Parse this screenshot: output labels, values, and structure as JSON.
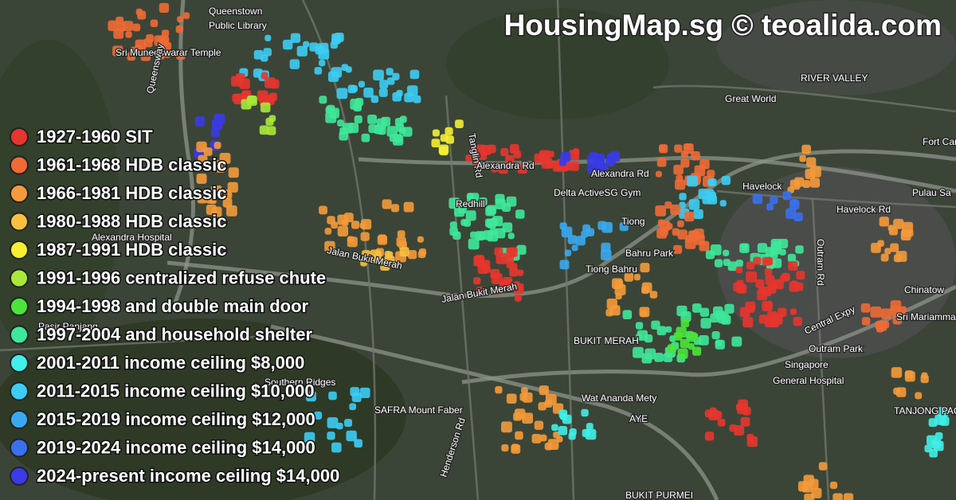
{
  "title": "HousingMap.sg © teoalida.com",
  "legend": [
    {
      "label": "1927-1960 SIT",
      "color": "#e8352e"
    },
    {
      "label": "1961-1968 HDB classic",
      "color": "#f06a35"
    },
    {
      "label": "1966-1981 HDB classic",
      "color": "#f59a3a"
    },
    {
      "label": "1980-1988 HDB classic",
      "color": "#f8c040"
    },
    {
      "label": "1987-1991 HDB classic",
      "color": "#f5f030"
    },
    {
      "label": "1991-1996 centralized refuse chute",
      "color": "#a8e83a"
    },
    {
      "label": "1994-1998 and double main door",
      "color": "#4ae43a"
    },
    {
      "label": "1997-2004 and household shelter",
      "color": "#3ee89a"
    },
    {
      "label": "2001-2011 income ceiling $8,000",
      "color": "#3ef0e8"
    },
    {
      "label": "2011-2015 income ceiling $10,000",
      "color": "#3ccdf5"
    },
    {
      "label": "2015-2019 income ceiling $12,000",
      "color": "#3aa8f0"
    },
    {
      "label": "2019-2024 income ceiling $14,000",
      "color": "#3a70f0"
    },
    {
      "label": "2024-present income ceiling $14,000",
      "color": "#3a3ae8"
    }
  ],
  "map_labels": [
    "Queenstown",
    "Public Library",
    "Sri Muneeswarar Temple",
    "Queensway",
    "RIVER VALLEY",
    "Great World",
    "Tanglin Rd",
    "Alexandra Rd",
    "Alexandra Rd",
    "Delta ActiveSG Gym",
    "Havelock",
    "Havelock Rd",
    "Pulau Sa",
    "Fort Can",
    "Redhill",
    "Alexandra Hospital",
    "Tiong",
    "Bahru Park",
    "Tiong Bahru",
    "Jalan Bukit Merah",
    "Jalan Bukit Merah",
    "Outram Rd",
    "Central Expy",
    "Chinatow",
    "Sri Mariamman",
    "BUKIT MERAH",
    "Outram Park",
    "Singapore",
    "General Hospital",
    "Pasir Panjang",
    "Southern Ridges",
    "SAFRA Mount Faber",
    "Henderson Rd",
    "Wat Ananda Mety",
    "AYE",
    "TANJONG PAG",
    "BUKIT PURMEI"
  ]
}
